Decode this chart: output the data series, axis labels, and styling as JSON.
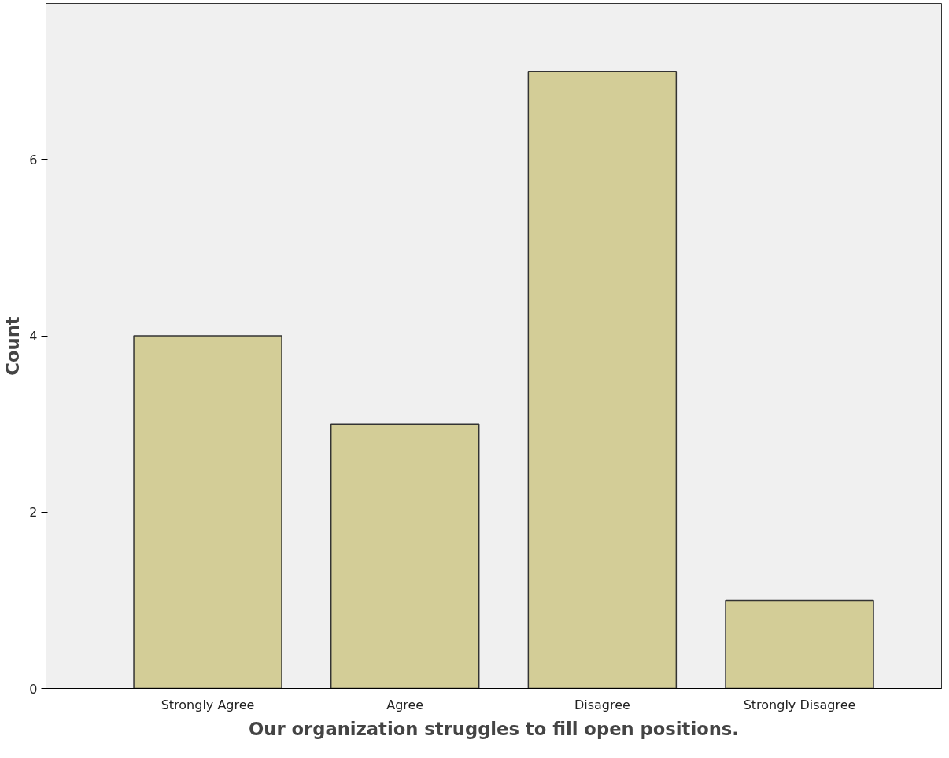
{
  "chart_data": {
    "type": "bar",
    "xlabel": "Our organization struggles to fill open positions.",
    "ylabel": "Count",
    "categories": [
      "Strongly Agree",
      "Agree",
      "Disagree",
      "Strongly Disagree"
    ],
    "values": [
      4,
      3,
      7,
      1
    ],
    "color": "#d3cd97",
    "ylim": [
      0,
      7.77
    ],
    "yticks": [
      0,
      2,
      4,
      6
    ],
    "grid": false
  }
}
